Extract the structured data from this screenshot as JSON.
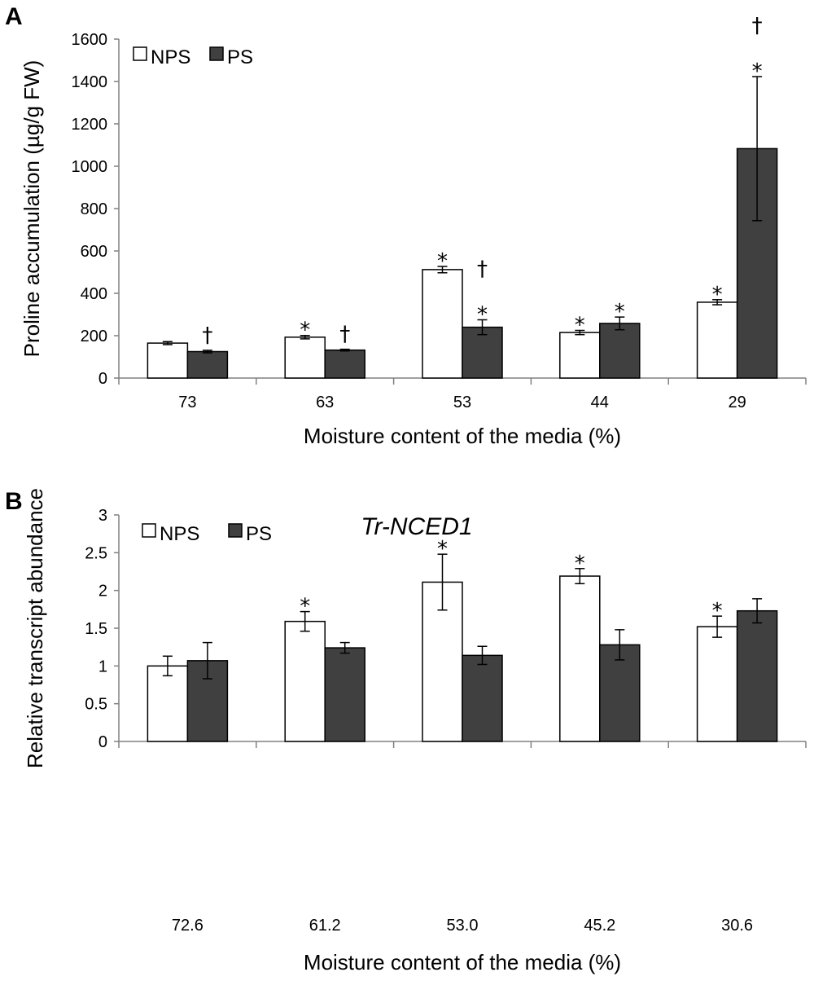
{
  "colors": {
    "nps": "#ffffff",
    "ps": "#404040",
    "axis": "#808080",
    "outline": "#000000"
  },
  "chart_data": [
    {
      "panel": "A",
      "type": "bar",
      "title": "",
      "xlabel": "Moisture content of the media (%)",
      "ylabel": "Proline accumulation (µg/g FW)",
      "ylim": [
        0,
        1600
      ],
      "yticks": [
        0,
        200,
        400,
        600,
        800,
        1000,
        1200,
        1400,
        1600
      ],
      "categories": [
        "73",
        "63",
        "53",
        "44",
        "29"
      ],
      "series": [
        {
          "name": "NPS",
          "values": [
            165,
            193,
            512,
            215,
            358
          ],
          "errors": [
            7,
            8,
            15,
            10,
            12
          ],
          "marks": [
            "",
            "*",
            "*",
            "*",
            "*"
          ]
        },
        {
          "name": "PS",
          "values": [
            125,
            132,
            240,
            258,
            1083
          ],
          "errors": [
            6,
            4,
            35,
            30,
            340
          ],
          "marks": [
            "†",
            "†",
            "†\n*",
            "*",
            "†\n*"
          ]
        }
      ]
    },
    {
      "panel": "B",
      "type": "bar",
      "title": "Tr-NCED1",
      "xlabel": "Moisture content of the media (%)",
      "ylabel": "Relative transcript abundance",
      "ylim": [
        0,
        3
      ],
      "yticks": [
        0,
        0.5,
        1,
        1.5,
        2,
        2.5,
        3
      ],
      "categories": [
        "72.6",
        "61.2",
        "53.0",
        "45.2",
        "30.6"
      ],
      "series": [
        {
          "name": "NPS",
          "values": [
            1.0,
            1.59,
            2.11,
            2.19,
            1.52
          ],
          "errors": [
            0.13,
            0.13,
            0.37,
            0.1,
            0.14
          ],
          "marks": [
            "",
            "*",
            "*",
            "*",
            "*"
          ]
        },
        {
          "name": "PS",
          "values": [
            1.07,
            1.24,
            1.14,
            1.28,
            1.73
          ],
          "errors": [
            0.24,
            0.07,
            0.12,
            0.2,
            0.16
          ],
          "marks": [
            "",
            "",
            "",
            "",
            ""
          ]
        }
      ]
    }
  ]
}
